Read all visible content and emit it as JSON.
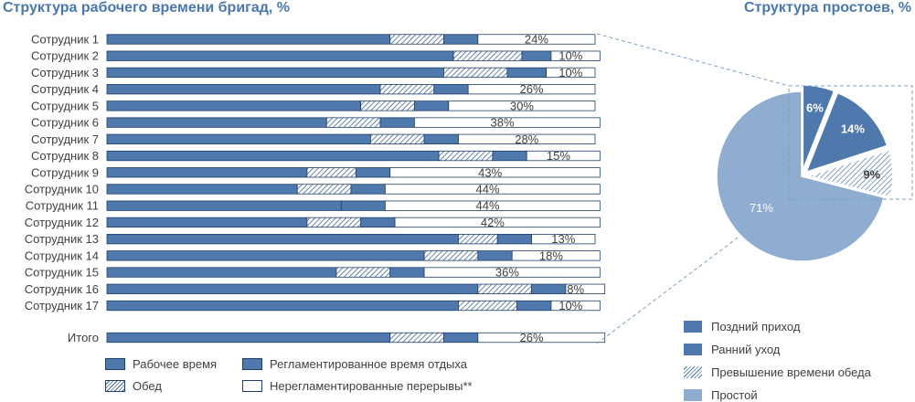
{
  "titles": {
    "left": "Структура рабочего времени бригад, %",
    "right": "Структура простоев, %"
  },
  "legend_bar": {
    "work": "Рабочее время",
    "rest": "Регламентированное время отдыха",
    "lunch": "Обед",
    "unreg": "Нерегламентированные перерывы**"
  },
  "legend_pie": {
    "late": "Поздний приход",
    "early": "Ранний уход",
    "lunch_over": "Превышение времени обеда",
    "idle": "Простой"
  },
  "colors": {
    "work": "#4f79ac",
    "rest": "#4f79ac",
    "lunch_hatch": "#3f6696",
    "unreg": "#ffffff",
    "outline": "#1f3f66",
    "pie_dark": "#4f79ac",
    "pie_light": "#8eadd1",
    "title": "#4a78ad",
    "dash": "#7f9fc5"
  },
  "chart_data": [
    {
      "type": "bar",
      "orientation": "horizontal",
      "stacked": true,
      "categories": [
        "Сотрудник 1",
        "Сотрудник 2",
        "Сотрудник 3",
        "Сотрудник 4",
        "Сотрудник 5",
        "Сотрудник 6",
        "Сотрудник 7",
        "Сотрудник 8",
        "Сотрудник 9",
        "Сотрудник 10",
        "Сотрудник 11",
        "Сотрудник 12",
        "Сотрудник 13",
        "Сотрудник 14",
        "Сотрудник 15",
        "Сотрудник 16",
        "Сотрудник 17",
        "Итого"
      ],
      "series": [
        {
          "name": "Рабочее время",
          "values": [
            58,
            71,
            69,
            56,
            52,
            45,
            54,
            68,
            41,
            39,
            48,
            41,
            72,
            65,
            47,
            76,
            72,
            58
          ]
        },
        {
          "name": "Обед",
          "values": [
            11,
            14,
            13,
            11,
            11,
            11,
            11,
            11,
            10,
            11,
            0,
            11,
            8,
            11,
            11,
            11,
            12,
            11
          ]
        },
        {
          "name": "Регламентированное время отдыха",
          "values": [
            7,
            6,
            8,
            7,
            7,
            7,
            7,
            7,
            7,
            7,
            9,
            7,
            7,
            7,
            7,
            7,
            7,
            7
          ]
        },
        {
          "name": "Нерегламентированные перерывы**",
          "values": [
            24,
            10,
            10,
            26,
            30,
            38,
            28,
            15,
            43,
            44,
            44,
            42,
            13,
            18,
            36,
            8,
            10,
            26
          ]
        }
      ],
      "data_labels": [
        "24%",
        "10%",
        "10%",
        "26%",
        "30%",
        "38%",
        "28%",
        "15%",
        "43%",
        "44%",
        "44%",
        "42%",
        "13%",
        "18%",
        "36%",
        "8%",
        "10%",
        "26%"
      ],
      "xlim": [
        0,
        100
      ],
      "grid": false
    },
    {
      "type": "pie",
      "labels": [
        "Поздний приход",
        "Ранний уход",
        "Превышение времени обеда",
        "Простой"
      ],
      "values": [
        6,
        14,
        9,
        71
      ],
      "data_labels": [
        "6%",
        "14%",
        "9%",
        "71%"
      ]
    }
  ]
}
